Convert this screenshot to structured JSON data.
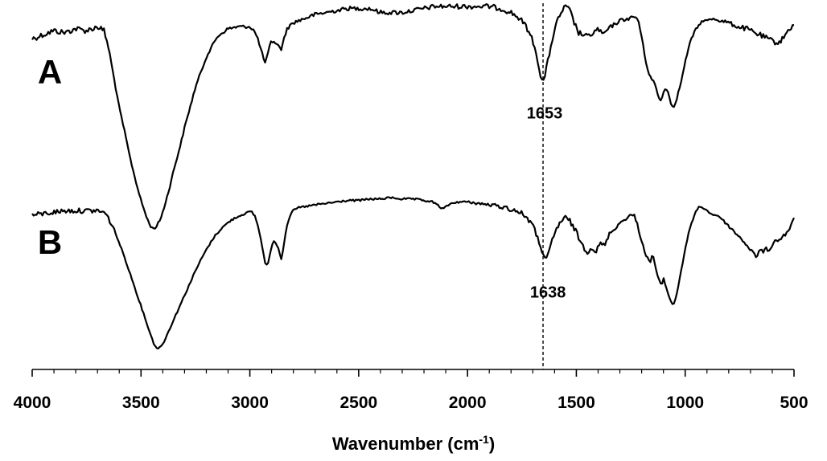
{
  "chart_data": {
    "type": "line",
    "xlabel": "Wavenumber (cm",
    "xlabel_superscript": "-1",
    "xlabel_close": ")",
    "xlim": [
      4000,
      500
    ],
    "x_reversed": true,
    "x_ticks": [
      4000,
      3500,
      3000,
      2500,
      2000,
      1500,
      1000,
      500
    ],
    "y_axis_shown": false,
    "grid": false,
    "legend": "none",
    "reference_line": {
      "x": 1653,
      "style": "dashed"
    },
    "series": [
      {
        "name": "A",
        "noise": [
          [
            4000,
            1.6
          ],
          [
            3650,
            1.6
          ],
          [
            3600,
            0.6
          ],
          [
            2000,
            1.4
          ],
          [
            1600,
            1.5
          ],
          [
            1500,
            1.6
          ],
          [
            1250,
            0.9
          ],
          [
            900,
            0.6
          ],
          [
            700,
            1.6
          ],
          [
            500,
            1.3
          ]
        ],
        "points": [
          [
            4000,
            0.94
          ],
          [
            3950,
            0.96
          ],
          [
            3900,
            0.98
          ],
          [
            3850,
            0.97
          ],
          [
            3800,
            0.99
          ],
          [
            3750,
            0.98
          ],
          [
            3700,
            1.0
          ],
          [
            3670,
            0.98
          ],
          [
            3650,
            0.9
          ],
          [
            3620,
            0.72
          ],
          [
            3600,
            0.6
          ],
          [
            3575,
            0.48
          ],
          [
            3550,
            0.35
          ],
          [
            3525,
            0.24
          ],
          [
            3500,
            0.14
          ],
          [
            3475,
            0.06
          ],
          [
            3460,
            0.02
          ],
          [
            3445,
            0.0
          ],
          [
            3430,
            0.01
          ],
          [
            3410,
            0.05
          ],
          [
            3390,
            0.12
          ],
          [
            3370,
            0.2
          ],
          [
            3350,
            0.29
          ],
          [
            3320,
            0.41
          ],
          [
            3300,
            0.5
          ],
          [
            3270,
            0.62
          ],
          [
            3250,
            0.7
          ],
          [
            3220,
            0.79
          ],
          [
            3200,
            0.85
          ],
          [
            3170,
            0.91
          ],
          [
            3150,
            0.95
          ],
          [
            3100,
            0.99
          ],
          [
            3050,
            1.0
          ],
          [
            3000,
            1.0
          ],
          [
            2980,
            0.98
          ],
          [
            2960,
            0.93
          ],
          [
            2945,
            0.87
          ],
          [
            2930,
            0.82
          ],
          [
            2920,
            0.85
          ],
          [
            2905,
            0.92
          ],
          [
            2890,
            0.93
          ],
          [
            2875,
            0.91
          ],
          [
            2855,
            0.89
          ],
          [
            2845,
            0.93
          ],
          [
            2830,
            0.99
          ],
          [
            2800,
            1.02
          ],
          [
            2750,
            1.04
          ],
          [
            2700,
            1.06
          ],
          [
            2650,
            1.07
          ],
          [
            2600,
            1.08
          ],
          [
            2550,
            1.09
          ],
          [
            2500,
            1.09
          ],
          [
            2450,
            1.09
          ],
          [
            2400,
            1.07
          ],
          [
            2350,
            1.07
          ],
          [
            2300,
            1.07
          ],
          [
            2250,
            1.08
          ],
          [
            2200,
            1.09
          ],
          [
            2150,
            1.1
          ],
          [
            2100,
            1.1
          ],
          [
            2050,
            1.1
          ],
          [
            2000,
            1.1
          ],
          [
            1950,
            1.1
          ],
          [
            1900,
            1.1
          ],
          [
            1850,
            1.09
          ],
          [
            1800,
            1.07
          ],
          [
            1760,
            1.04
          ],
          [
            1730,
            1.0
          ],
          [
            1700,
            0.93
          ],
          [
            1680,
            0.85
          ],
          [
            1665,
            0.76
          ],
          [
            1653,
            0.72
          ],
          [
            1640,
            0.78
          ],
          [
            1625,
            0.86
          ],
          [
            1610,
            0.94
          ],
          [
            1590,
            1.02
          ],
          [
            1570,
            1.07
          ],
          [
            1550,
            1.1
          ],
          [
            1530,
            1.08
          ],
          [
            1510,
            1.02
          ],
          [
            1490,
            0.97
          ],
          [
            1470,
            0.96
          ],
          [
            1450,
            0.95
          ],
          [
            1420,
            0.97
          ],
          [
            1400,
            0.99
          ],
          [
            1380,
            0.96
          ],
          [
            1360,
            0.98
          ],
          [
            1340,
            1.0
          ],
          [
            1300,
            1.03
          ],
          [
            1260,
            1.04
          ],
          [
            1230,
            1.05
          ],
          [
            1215,
            1.03
          ],
          [
            1200,
            0.95
          ],
          [
            1185,
            0.85
          ],
          [
            1170,
            0.78
          ],
          [
            1155,
            0.74
          ],
          [
            1140,
            0.72
          ],
          [
            1125,
            0.66
          ],
          [
            1110,
            0.63
          ],
          [
            1095,
            0.7
          ],
          [
            1080,
            0.68
          ],
          [
            1065,
            0.62
          ],
          [
            1055,
            0.6
          ],
          [
            1040,
            0.64
          ],
          [
            1025,
            0.7
          ],
          [
            1010,
            0.77
          ],
          [
            995,
            0.85
          ],
          [
            975,
            0.93
          ],
          [
            955,
            0.98
          ],
          [
            935,
            1.01
          ],
          [
            920,
            1.03
          ],
          [
            900,
            1.03
          ],
          [
            870,
            1.04
          ],
          [
            840,
            1.03
          ],
          [
            800,
            1.02
          ],
          [
            760,
            1.0
          ],
          [
            720,
            0.99
          ],
          [
            680,
            0.97
          ],
          [
            640,
            0.95
          ],
          [
            600,
            0.93
          ],
          [
            580,
            0.92
          ],
          [
            560,
            0.93
          ],
          [
            540,
            0.96
          ],
          [
            520,
            0.99
          ],
          [
            500,
            1.01
          ]
        ]
      },
      {
        "name": "B",
        "noise": [
          [
            4000,
            1.4
          ],
          [
            3650,
            1.4
          ],
          [
            3600,
            0.5
          ],
          [
            2000,
            0.6
          ],
          [
            1800,
            1.4
          ],
          [
            1500,
            1.6
          ],
          [
            1300,
            0.9
          ],
          [
            900,
            0.5
          ],
          [
            700,
            1.0
          ],
          [
            500,
            1.2
          ]
        ],
        "points": [
          [
            4000,
            0.95
          ],
          [
            3950,
            0.96
          ],
          [
            3900,
            0.97
          ],
          [
            3850,
            0.98
          ],
          [
            3800,
            0.98
          ],
          [
            3750,
            0.98
          ],
          [
            3700,
            0.98
          ],
          [
            3670,
            0.97
          ],
          [
            3650,
            0.93
          ],
          [
            3620,
            0.84
          ],
          [
            3600,
            0.76
          ],
          [
            3575,
            0.66
          ],
          [
            3550,
            0.55
          ],
          [
            3525,
            0.44
          ],
          [
            3500,
            0.33
          ],
          [
            3475,
            0.22
          ],
          [
            3455,
            0.13
          ],
          [
            3440,
            0.07
          ],
          [
            3425,
            0.04
          ],
          [
            3410,
            0.05
          ],
          [
            3390,
            0.1
          ],
          [
            3370,
            0.17
          ],
          [
            3340,
            0.27
          ],
          [
            3310,
            0.37
          ],
          [
            3280,
            0.47
          ],
          [
            3250,
            0.57
          ],
          [
            3220,
            0.66
          ],
          [
            3190,
            0.74
          ],
          [
            3160,
            0.81
          ],
          [
            3130,
            0.86
          ],
          [
            3100,
            0.9
          ],
          [
            3070,
            0.93
          ],
          [
            3040,
            0.95
          ],
          [
            3010,
            0.97
          ],
          [
            2990,
            0.97
          ],
          [
            2975,
            0.94
          ],
          [
            2960,
            0.86
          ],
          [
            2945,
            0.75
          ],
          [
            2930,
            0.63
          ],
          [
            2920,
            0.6
          ],
          [
            2905,
            0.7
          ],
          [
            2890,
            0.78
          ],
          [
            2880,
            0.76
          ],
          [
            2868,
            0.72
          ],
          [
            2855,
            0.65
          ],
          [
            2845,
            0.74
          ],
          [
            2830,
            0.88
          ],
          [
            2810,
            0.97
          ],
          [
            2780,
            1.0
          ],
          [
            2740,
            1.01
          ],
          [
            2700,
            1.02
          ],
          [
            2650,
            1.03
          ],
          [
            2600,
            1.04
          ],
          [
            2550,
            1.05
          ],
          [
            2500,
            1.05
          ],
          [
            2450,
            1.06
          ],
          [
            2400,
            1.06
          ],
          [
            2350,
            1.07
          ],
          [
            2300,
            1.06
          ],
          [
            2250,
            1.06
          ],
          [
            2200,
            1.05
          ],
          [
            2160,
            1.04
          ],
          [
            2130,
            1.01
          ],
          [
            2110,
            0.99
          ],
          [
            2090,
            1.02
          ],
          [
            2050,
            1.04
          ],
          [
            2000,
            1.04
          ],
          [
            1950,
            1.03
          ],
          [
            1900,
            1.02
          ],
          [
            1850,
            1.01
          ],
          [
            1800,
            0.99
          ],
          [
            1760,
            0.97
          ],
          [
            1730,
            0.94
          ],
          [
            1700,
            0.88
          ],
          [
            1680,
            0.8
          ],
          [
            1660,
            0.72
          ],
          [
            1645,
            0.66
          ],
          [
            1638,
            0.64
          ],
          [
            1625,
            0.7
          ],
          [
            1610,
            0.78
          ],
          [
            1590,
            0.86
          ],
          [
            1570,
            0.91
          ],
          [
            1550,
            0.93
          ],
          [
            1530,
            0.91
          ],
          [
            1510,
            0.86
          ],
          [
            1490,
            0.8
          ],
          [
            1470,
            0.74
          ],
          [
            1450,
            0.7
          ],
          [
            1430,
            0.73
          ],
          [
            1410,
            0.7
          ],
          [
            1390,
            0.76
          ],
          [
            1370,
            0.74
          ],
          [
            1350,
            0.82
          ],
          [
            1330,
            0.85
          ],
          [
            1310,
            0.88
          ],
          [
            1290,
            0.91
          ],
          [
            1270,
            0.93
          ],
          [
            1250,
            0.95
          ],
          [
            1235,
            0.95
          ],
          [
            1220,
            0.89
          ],
          [
            1205,
            0.8
          ],
          [
            1190,
            0.72
          ],
          [
            1175,
            0.66
          ],
          [
            1160,
            0.63
          ],
          [
            1150,
            0.69
          ],
          [
            1140,
            0.62
          ],
          [
            1125,
            0.52
          ],
          [
            1110,
            0.47
          ],
          [
            1100,
            0.52
          ],
          [
            1090,
            0.47
          ],
          [
            1075,
            0.4
          ],
          [
            1065,
            0.36
          ],
          [
            1055,
            0.34
          ],
          [
            1045,
            0.37
          ],
          [
            1030,
            0.48
          ],
          [
            1015,
            0.6
          ],
          [
            1000,
            0.72
          ],
          [
            985,
            0.82
          ],
          [
            970,
            0.9
          ],
          [
            955,
            0.96
          ],
          [
            940,
            1.0
          ],
          [
            925,
            1.01
          ],
          [
            910,
            0.99
          ],
          [
            890,
            0.97
          ],
          [
            870,
            0.95
          ],
          [
            850,
            0.95
          ],
          [
            830,
            0.92
          ],
          [
            810,
            0.89
          ],
          [
            790,
            0.86
          ],
          [
            770,
            0.83
          ],
          [
            750,
            0.8
          ],
          [
            730,
            0.77
          ],
          [
            710,
            0.73
          ],
          [
            690,
            0.7
          ],
          [
            675,
            0.66
          ],
          [
            660,
            0.71
          ],
          [
            645,
            0.7
          ],
          [
            630,
            0.72
          ],
          [
            615,
            0.71
          ],
          [
            600,
            0.75
          ],
          [
            580,
            0.78
          ],
          [
            560,
            0.79
          ],
          [
            540,
            0.82
          ],
          [
            520,
            0.86
          ],
          [
            500,
            0.92
          ]
        ]
      }
    ],
    "annotations": [
      {
        "text": "1653",
        "series": "A",
        "x": 1653
      },
      {
        "text": "1638",
        "series": "B",
        "x": 1638
      }
    ]
  }
}
